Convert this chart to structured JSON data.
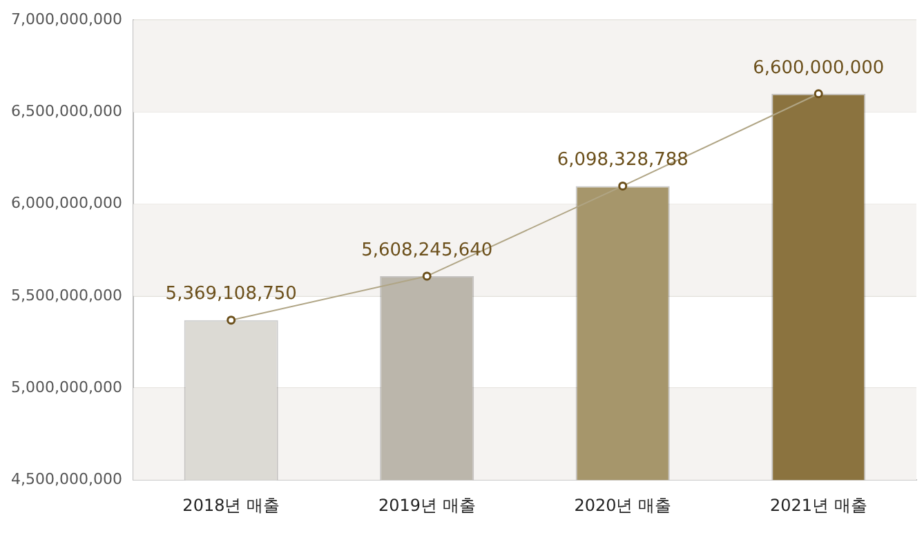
{
  "chart_data": {
    "type": "bar",
    "categories": [
      "2018년 매출",
      "2019년 매출",
      "2020년 매출",
      "2021년 매출"
    ],
    "series": [
      {
        "type": "bar",
        "colors": [
          "#dcdad4",
          "#bbb6ab",
          "#a6966b",
          "#8b733f"
        ],
        "values": [
          5369108750,
          5608245640,
          6098328788,
          6600000000
        ]
      },
      {
        "type": "line",
        "color": "#b0a585",
        "values": [
          5369108750,
          5608245640,
          6098328788,
          6600000000
        ],
        "value_labels": [
          "5,369,108,750",
          "5,608,245,640",
          "6,098,328,788",
          "6,600,000,000"
        ]
      }
    ],
    "ylim": [
      4500000000,
      7000000000
    ],
    "yticks": [
      {
        "value": 4500000000,
        "label": "4,500,000,000"
      },
      {
        "value": 5000000000,
        "label": "5,000,000,000"
      },
      {
        "value": 5500000000,
        "label": "5,500,000,000"
      },
      {
        "value": 6000000000,
        "label": "6,000,000,000"
      },
      {
        "value": 6500000000,
        "label": "6,500,000,000"
      },
      {
        "value": 7000000000,
        "label": "7,000,000,000"
      }
    ],
    "grid": "y",
    "legend": false,
    "marker": "circle"
  }
}
